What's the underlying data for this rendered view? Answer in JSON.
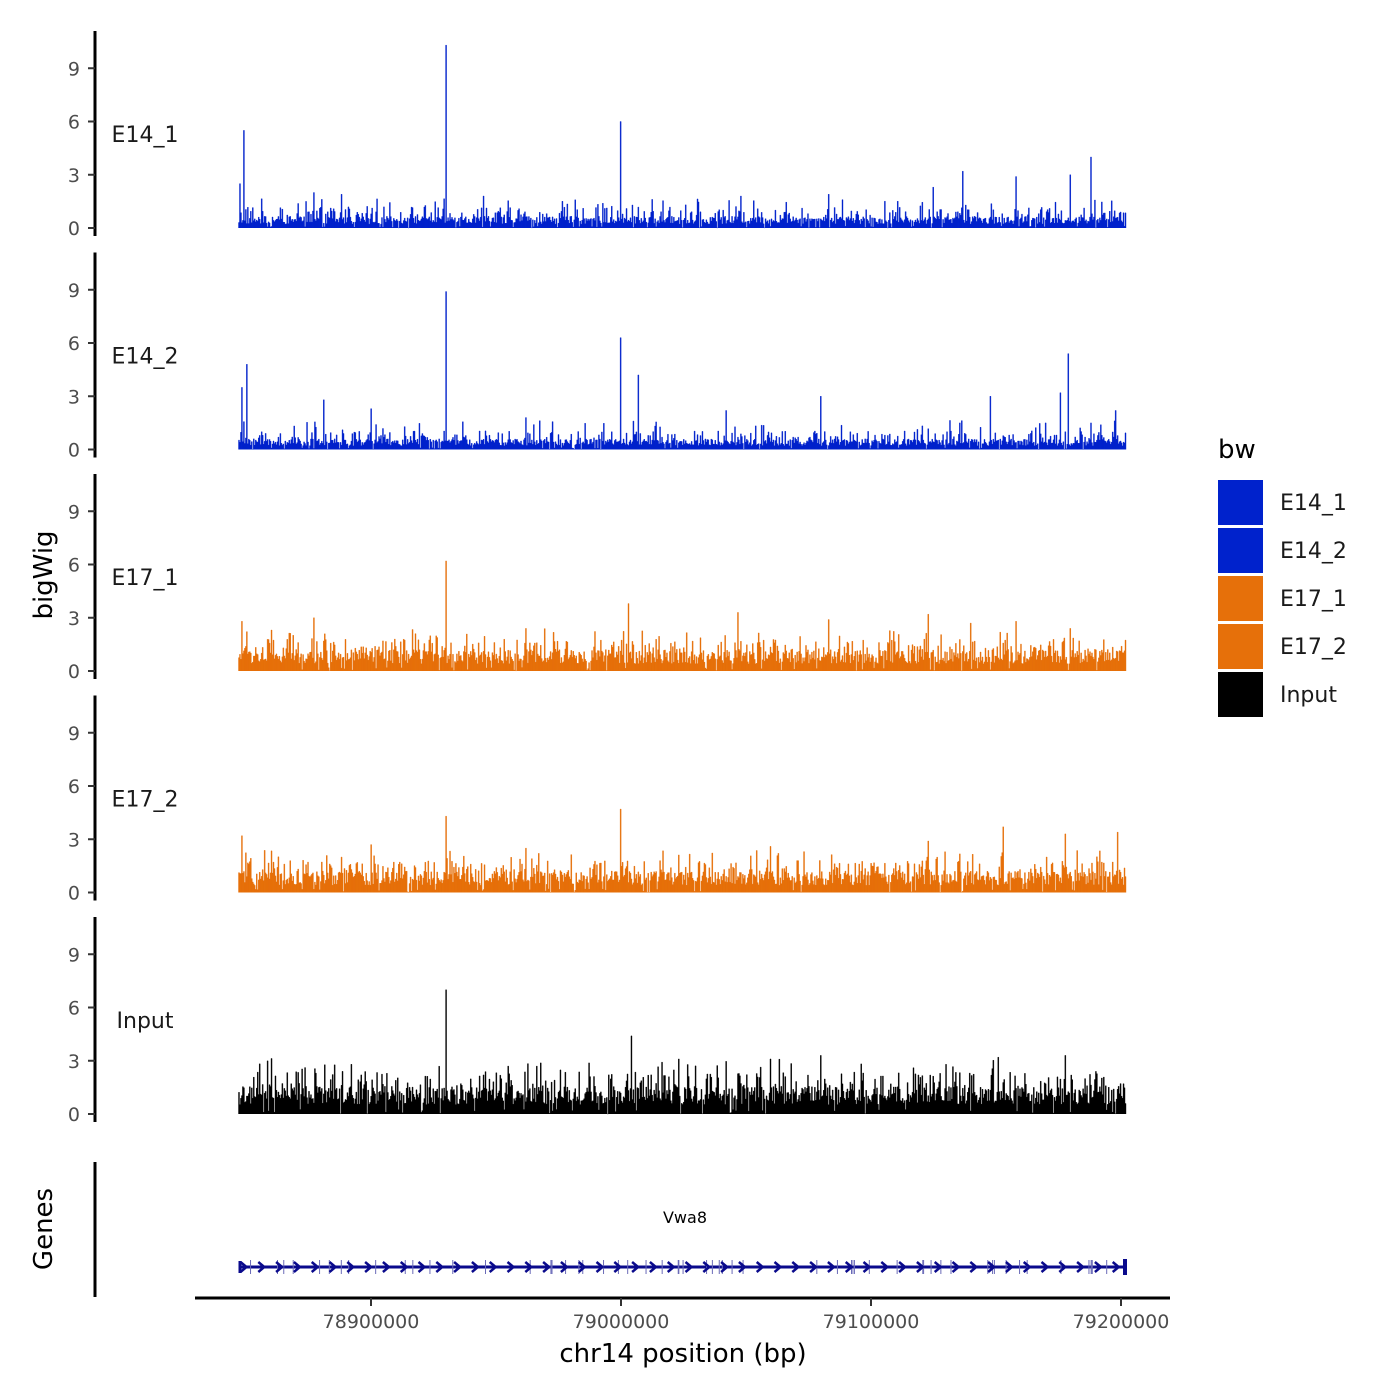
{
  "chart_data": {
    "type": "area",
    "title": "",
    "ylabel": "bigWig",
    "genes_label": "Genes",
    "xlabel": "chr14 position (bp)",
    "chromosome": "chr14",
    "xlim": [
      78825000,
      79220000
    ],
    "data_range": [
      78847000,
      79202000
    ],
    "x_ticks": [
      78900000,
      79000000,
      79100000,
      79200000
    ],
    "x_tick_labels": [
      "78900000",
      "79000000",
      "79100000",
      "79200000"
    ],
    "ylim": [
      0,
      11.5
    ],
    "y_ticks": [
      0,
      3,
      6,
      9
    ],
    "y_tick_labels": [
      "0",
      "3",
      "6",
      "9"
    ],
    "tracks": [
      {
        "name": "E14_1",
        "color": "#0022CC",
        "baseline": [
          0.55,
          0.8,
          1.1
        ],
        "peaks": [
          [
            78847500,
            2.5
          ],
          [
            78849000,
            5.5
          ],
          [
            78877000,
            2.0
          ],
          [
            78888000,
            1.9
          ],
          [
            78930000,
            10.3
          ],
          [
            78945000,
            1.8
          ],
          [
            79000000,
            6.0
          ],
          [
            79048000,
            1.8
          ],
          [
            79083000,
            1.9
          ],
          [
            79125000,
            2.3
          ],
          [
            79137000,
            3.2
          ],
          [
            79158000,
            2.9
          ],
          [
            79180000,
            3.0
          ],
          [
            79188000,
            4.0
          ],
          [
            79200000,
            0.9
          ]
        ]
      },
      {
        "name": "E14_2",
        "color": "#0022CC",
        "baseline": [
          0.5,
          0.7,
          1.1
        ],
        "peaks": [
          [
            78848000,
            3.5
          ],
          [
            78850000,
            4.8
          ],
          [
            78881000,
            2.8
          ],
          [
            78900000,
            2.3
          ],
          [
            78930000,
            8.9
          ],
          [
            78962000,
            1.8
          ],
          [
            79000000,
            6.3
          ],
          [
            79007000,
            4.2
          ],
          [
            79042000,
            2.2
          ],
          [
            79080000,
            3.0
          ],
          [
            79148000,
            3.0
          ],
          [
            79176000,
            3.2
          ],
          [
            79179000,
            5.4
          ],
          [
            79198000,
            2.2
          ]
        ]
      },
      {
        "name": "E17_1",
        "color": "#E6700A",
        "baseline": [
          1.0,
          1.2,
          1.6
        ],
        "peaks": [
          [
            78848000,
            2.8
          ],
          [
            78877000,
            3.0
          ],
          [
            78930000,
            6.2
          ],
          [
            78962000,
            2.4
          ],
          [
            79003000,
            3.8
          ],
          [
            79047000,
            3.3
          ],
          [
            79083000,
            2.9
          ],
          [
            79123000,
            3.2
          ],
          [
            79140000,
            2.7
          ],
          [
            79158000,
            2.8
          ],
          [
            79180000,
            2.4
          ]
        ]
      },
      {
        "name": "E17_2",
        "color": "#E6700A",
        "baseline": [
          1.0,
          1.2,
          1.6
        ],
        "peaks": [
          [
            78848000,
            3.2
          ],
          [
            78900000,
            2.7
          ],
          [
            78930000,
            4.3
          ],
          [
            78962000,
            2.5
          ],
          [
            79000000,
            4.7
          ],
          [
            79060000,
            2.6
          ],
          [
            79123000,
            2.9
          ],
          [
            79153000,
            3.7
          ],
          [
            79178000,
            3.3
          ],
          [
            79199000,
            3.4
          ]
        ]
      },
      {
        "name": "Input",
        "color": "#000000",
        "baseline": [
          1.3,
          1.6,
          2.1
        ],
        "peaks": [
          [
            78860000,
            2.6
          ],
          [
            78892000,
            2.8
          ],
          [
            78930000,
            7.0
          ],
          [
            78955000,
            2.7
          ],
          [
            79004000,
            4.4
          ],
          [
            79023000,
            3.1
          ],
          [
            79060000,
            3.1
          ],
          [
            79080000,
            3.3
          ],
          [
            79130000,
            2.8
          ],
          [
            79151000,
            3.2
          ],
          [
            79178000,
            3.3
          ],
          [
            79190000,
            2.4
          ]
        ]
      }
    ],
    "legend": {
      "title": "bw",
      "position": "right",
      "entries": [
        {
          "label": "E14_1",
          "color": "#0022CC"
        },
        {
          "label": "E14_2",
          "color": "#0022CC"
        },
        {
          "label": "E17_1",
          "color": "#E6700A"
        },
        {
          "label": "E17_2",
          "color": "#E6700A"
        },
        {
          "label": "Input",
          "color": "#000000"
        }
      ]
    },
    "gene_track": {
      "name": "Vwa8",
      "color": "#0A0A8C",
      "start": 78847000,
      "end": 79202000,
      "strand": "+"
    }
  }
}
